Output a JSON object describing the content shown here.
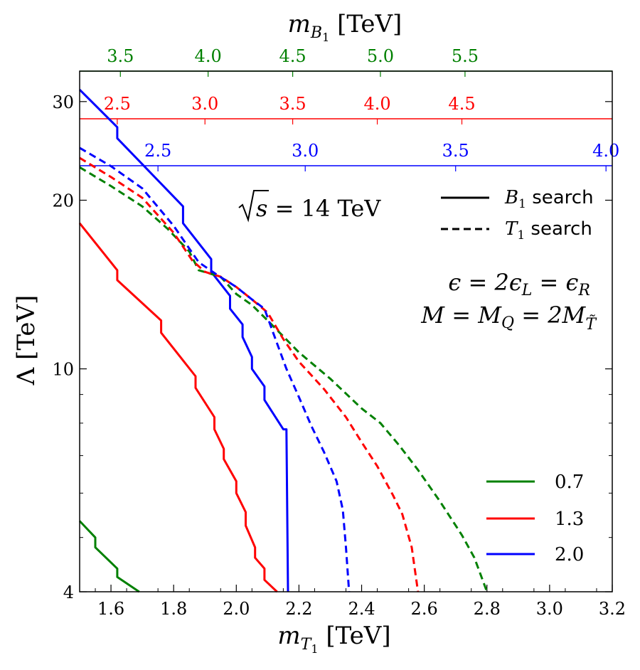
{
  "chart_data": {
    "type": "line",
    "x_axis": {
      "label_main": "m",
      "label_sub": "T",
      "label_subsub": "1",
      "label_unit": " [TeV]",
      "range": [
        1.5,
        3.2
      ],
      "ticks": [
        1.6,
        1.8,
        2.0,
        2.2,
        2.4,
        2.6,
        2.8,
        3.0,
        3.2
      ],
      "tick_labels": [
        "1.6",
        "1.8",
        "2.0",
        "2.2",
        "2.4",
        "2.6",
        "2.8",
        "3.0",
        "3.2"
      ]
    },
    "y_axis": {
      "label_main": "Λ",
      "label_unit": " [TeV]",
      "scale": "log",
      "range": [
        4,
        34
      ],
      "ticks": [
        4,
        10,
        20,
        30
      ],
      "tick_labels": [
        "4",
        "10",
        "20",
        "30"
      ]
    },
    "top_axis": {
      "label_main": "m",
      "label_sub": "B",
      "label_subsub": "1",
      "label_unit": " [TeV]",
      "axes": [
        {
          "name": "0.7",
          "color": "#008000",
          "ticks": [
            3.5,
            4.0,
            4.5,
            5.0,
            5.5
          ],
          "tick_labels": [
            "3.5",
            "4.0",
            "4.5",
            "5.0",
            "5.5"
          ],
          "tick_x_at_mT1": [
            1.63,
            1.91,
            2.18,
            2.46,
            2.73
          ]
        },
        {
          "name": "1.3",
          "color": "#ff0000",
          "ticks": [
            2.5,
            3.0,
            3.5,
            4.0,
            4.5
          ],
          "tick_labels": [
            "2.5",
            "3.0",
            "3.5",
            "4.0",
            "4.5"
          ],
          "tick_x_at_mT1": [
            1.62,
            1.9,
            2.18,
            2.45,
            2.72
          ]
        },
        {
          "name": "2.0",
          "color": "#0000ff",
          "ticks": [
            2.5,
            3.0,
            3.5,
            4.0
          ],
          "tick_labels": [
            "2.5",
            "3.0",
            "3.5",
            "4.0"
          ],
          "tick_x_at_mT1": [
            1.75,
            2.22,
            2.7,
            3.18
          ]
        }
      ]
    },
    "annotations": {
      "energy_main": "s",
      "energy_rest": " = 14 TeV",
      "eps_line": "ϵ = 2ϵ",
      "eps_sub_L": "L",
      "eps_eq": " = ϵ",
      "eps_sub_R": "R",
      "mass_line": "M = M",
      "mass_sub_Q": "Q",
      "mass_eq": " = 2M",
      "mass_sub_T": "T̃"
    },
    "style_legend": [
      {
        "label_main": "B",
        "label_sub": "1",
        "label_rest": " search",
        "dash": "solid"
      },
      {
        "label_main": "T",
        "label_sub": "1",
        "label_rest": " search",
        "dash": "dashed"
      }
    ],
    "color_legend": [
      {
        "label": "0.7",
        "color": "#008000"
      },
      {
        "label": "1.3",
        "color": "#ff0000"
      },
      {
        "label": "2.0",
        "color": "#0000ff"
      }
    ],
    "series": [
      {
        "name": "B1 search 0.7",
        "color": "#008000",
        "dash": "solid",
        "points": [
          [
            1.5,
            5.35
          ],
          [
            1.55,
            5.0
          ],
          [
            1.55,
            4.8
          ],
          [
            1.62,
            4.4
          ],
          [
            1.62,
            4.25
          ],
          [
            1.69,
            4.0
          ]
        ]
      },
      {
        "name": "B1 search 1.3",
        "color": "#ff0000",
        "dash": "solid",
        "points": [
          [
            1.5,
            18.2
          ],
          [
            1.62,
            15.0
          ],
          [
            1.62,
            14.4
          ],
          [
            1.76,
            12.2
          ],
          [
            1.76,
            11.6
          ],
          [
            1.87,
            9.7
          ],
          [
            1.87,
            9.25
          ],
          [
            1.93,
            8.2
          ],
          [
            1.93,
            7.8
          ],
          [
            1.96,
            7.2
          ],
          [
            1.96,
            6.9
          ],
          [
            2.0,
            6.3
          ],
          [
            2.0,
            6.0
          ],
          [
            2.03,
            5.55
          ],
          [
            2.03,
            5.25
          ],
          [
            2.06,
            4.8
          ],
          [
            2.06,
            4.6
          ],
          [
            2.09,
            4.4
          ],
          [
            2.09,
            4.2
          ],
          [
            2.13,
            4.0
          ]
        ]
      },
      {
        "name": "B1 search 2.0",
        "color": "#0000ff",
        "dash": "solid",
        "points": [
          [
            1.5,
            31.5
          ],
          [
            1.62,
            27.0
          ],
          [
            1.62,
            25.8
          ],
          [
            1.83,
            19.5
          ],
          [
            1.83,
            18.2
          ],
          [
            1.92,
            15.7
          ],
          [
            1.92,
            14.9
          ],
          [
            1.98,
            13.5
          ],
          [
            1.98,
            12.8
          ],
          [
            2.02,
            12.0
          ],
          [
            2.02,
            11.4
          ],
          [
            2.05,
            10.5
          ],
          [
            2.05,
            10.0
          ],
          [
            2.09,
            9.3
          ],
          [
            2.09,
            8.8
          ],
          [
            2.15,
            7.8
          ],
          [
            2.16,
            7.8
          ],
          [
            2.165,
            4.0
          ]
        ]
      },
      {
        "name": "T1 search 0.7",
        "color": "#008000",
        "dash": "dashed",
        "points": [
          [
            1.5,
            22.9
          ],
          [
            1.6,
            21.2
          ],
          [
            1.7,
            19.5
          ],
          [
            1.78,
            17.8
          ],
          [
            1.85,
            16.2
          ],
          [
            1.88,
            15.0
          ],
          [
            1.95,
            14.6
          ],
          [
            2.0,
            13.6
          ],
          [
            2.05,
            13.0
          ],
          [
            2.1,
            12.2
          ],
          [
            2.2,
            10.7
          ],
          [
            2.3,
            9.6
          ],
          [
            2.4,
            8.5
          ],
          [
            2.46,
            8.0
          ],
          [
            2.52,
            7.3
          ],
          [
            2.58,
            6.6
          ],
          [
            2.65,
            5.8
          ],
          [
            2.72,
            5.05
          ],
          [
            2.76,
            4.6
          ],
          [
            2.8,
            4.0
          ]
        ]
      },
      {
        "name": "T1 search 1.3",
        "color": "#ff0000",
        "dash": "dashed",
        "points": [
          [
            1.5,
            23.8
          ],
          [
            1.6,
            22.0
          ],
          [
            1.7,
            20.2
          ],
          [
            1.8,
            17.5
          ],
          [
            1.86,
            15.6
          ],
          [
            1.9,
            14.9
          ],
          [
            1.95,
            14.6
          ],
          [
            2.0,
            14.0
          ],
          [
            2.05,
            13.3
          ],
          [
            2.1,
            12.6
          ],
          [
            2.15,
            11.3
          ],
          [
            2.2,
            10.3
          ],
          [
            2.28,
            9.2
          ],
          [
            2.35,
            8.2
          ],
          [
            2.4,
            7.4
          ],
          [
            2.45,
            6.7
          ],
          [
            2.5,
            5.95
          ],
          [
            2.53,
            5.5
          ],
          [
            2.56,
            4.8
          ],
          [
            2.58,
            4.0
          ]
        ]
      },
      {
        "name": "T1 search 2.0",
        "color": "#0000ff",
        "dash": "dashed",
        "points": [
          [
            1.5,
            24.8
          ],
          [
            1.6,
            23.0
          ],
          [
            1.7,
            21.0
          ],
          [
            1.8,
            18.0
          ],
          [
            1.88,
            15.5
          ],
          [
            1.94,
            14.7
          ],
          [
            2.0,
            14.0
          ],
          [
            2.05,
            13.3
          ],
          [
            2.09,
            12.8
          ],
          [
            2.12,
            11.5
          ],
          [
            2.16,
            10.0
          ],
          [
            2.2,
            8.9
          ],
          [
            2.24,
            7.9
          ],
          [
            2.28,
            7.1
          ],
          [
            2.32,
            6.3
          ],
          [
            2.34,
            5.6
          ],
          [
            2.35,
            4.8
          ],
          [
            2.36,
            4.0
          ]
        ]
      }
    ]
  }
}
